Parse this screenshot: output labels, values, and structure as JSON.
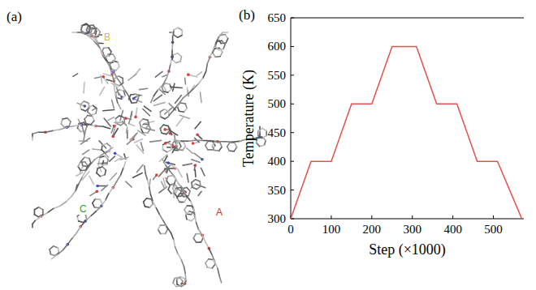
{
  "figure_a": {
    "label": "(a)",
    "axis_labels": [
      {
        "text": "B",
        "color": "#d8c200"
      },
      {
        "text": "C",
        "color": "#2aa82a"
      },
      {
        "text": "A",
        "color": "#d03030"
      }
    ]
  },
  "chart_data": {
    "type": "line",
    "panel_label": "(b)",
    "x_label": "Step (×1000)",
    "y_label": "Temperature (K)",
    "x": [
      0,
      50,
      100,
      150,
      200,
      250,
      310,
      360,
      410,
      460,
      510,
      570
    ],
    "series": [
      {
        "color": "#e8504a",
        "values": [
          300,
          400,
          400,
          500,
          500,
          600,
          600,
          500,
          500,
          400,
          400,
          300
        ]
      }
    ],
    "xlim": [
      0,
      575
    ],
    "xticks": [
      0,
      100,
      200,
      300,
      400,
      500
    ],
    "ylim": [
      300,
      650
    ],
    "yticks": [
      300,
      350,
      400,
      450,
      500,
      550,
      600,
      650
    ]
  }
}
